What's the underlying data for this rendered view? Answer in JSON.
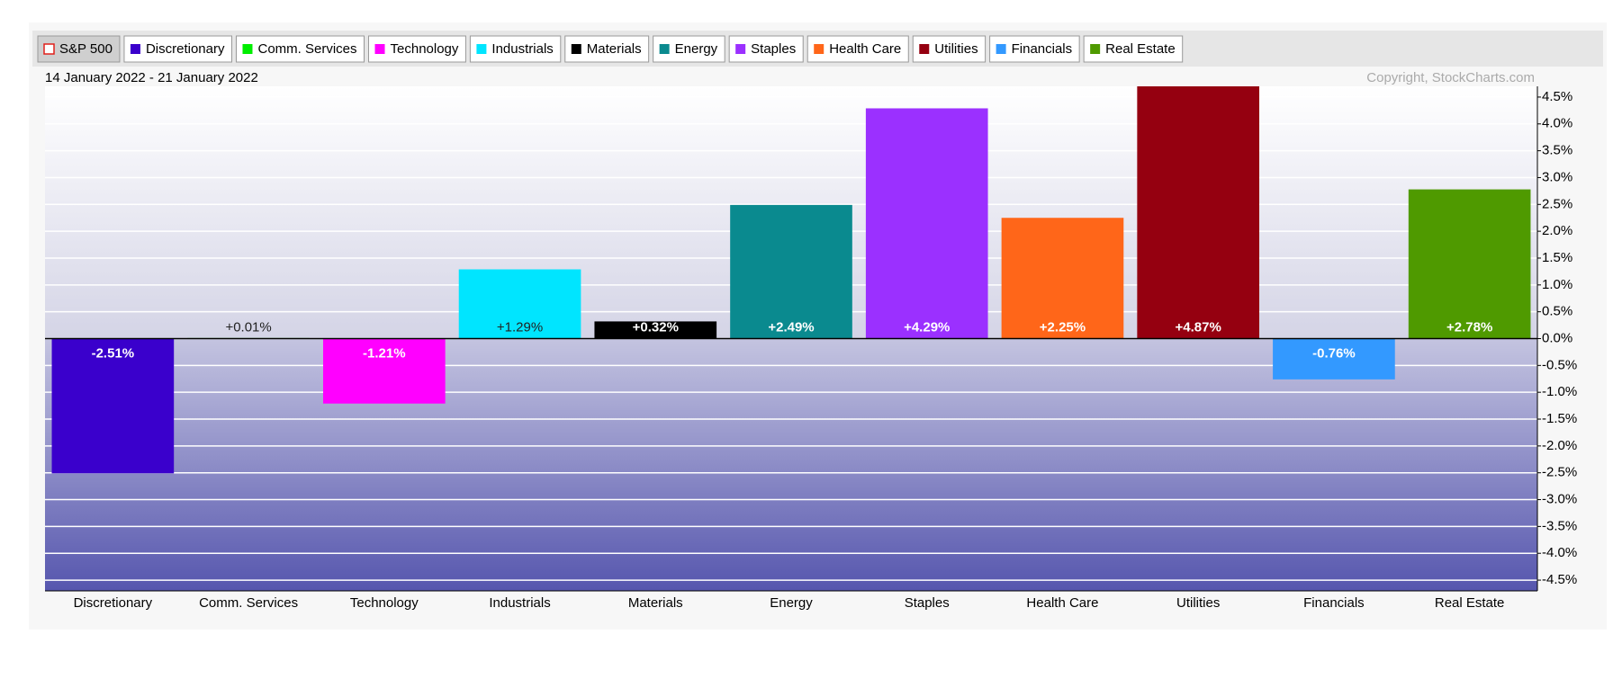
{
  "chart_data": {
    "type": "bar",
    "subtitle": "14 January 2022 - 21 January 2022",
    "copyright": "Copyright, StockCharts.com",
    "benchmark": {
      "name": "S&P 500",
      "color": "#e0201b"
    },
    "categories": [
      "Discretionary",
      "Comm. Services",
      "Technology",
      "Industrials",
      "Materials",
      "Energy",
      "Staples",
      "Health Care",
      "Utilities",
      "Financials",
      "Real Estate"
    ],
    "colors": [
      "#3a00cc",
      "#00ee00",
      "#ff00ff",
      "#00e5ff",
      "#000000",
      "#0a8a8f",
      "#9b30ff",
      "#ff6619",
      "#950010",
      "#3399ff",
      "#4f9a00"
    ],
    "values": [
      -2.51,
      0.01,
      -1.21,
      1.29,
      0.32,
      2.49,
      4.29,
      2.25,
      4.87,
      -0.76,
      2.78
    ],
    "value_labels": [
      "-2.51%",
      "+0.01%",
      "-1.21%",
      "+1.29%",
      "+0.32%",
      "+2.49%",
      "+4.29%",
      "+2.25%",
      "+4.87%",
      "-0.76%",
      "+2.78%"
    ],
    "ylim": [
      -4.7,
      4.7
    ],
    "yticks": [
      {
        "value": 4.5,
        "label": "4.5%"
      },
      {
        "value": 4.0,
        "label": "4.0%"
      },
      {
        "value": 3.5,
        "label": "3.5%"
      },
      {
        "value": 3.0,
        "label": "3.0%"
      },
      {
        "value": 2.5,
        "label": "2.5%"
      },
      {
        "value": 2.0,
        "label": "2.0%"
      },
      {
        "value": 1.5,
        "label": "1.5%"
      },
      {
        "value": 1.0,
        "label": "1.0%"
      },
      {
        "value": 0.5,
        "label": "0.5%"
      },
      {
        "value": 0,
        "label": "0.0%"
      },
      {
        "value": -0.5,
        "label": "-0.5%"
      },
      {
        "value": -1.0,
        "label": "-1.0%"
      },
      {
        "value": -1.5,
        "label": "-1.5%"
      },
      {
        "value": -2.0,
        "label": "-2.0%"
      },
      {
        "value": -2.5,
        "label": "-2.5%"
      },
      {
        "value": -3.0,
        "label": "-3.0%"
      },
      {
        "value": -3.5,
        "label": "-3.5%"
      },
      {
        "value": -4.0,
        "label": "-4.0%"
      },
      {
        "value": -4.5,
        "label": "-4.5%"
      }
    ],
    "grid": true
  }
}
